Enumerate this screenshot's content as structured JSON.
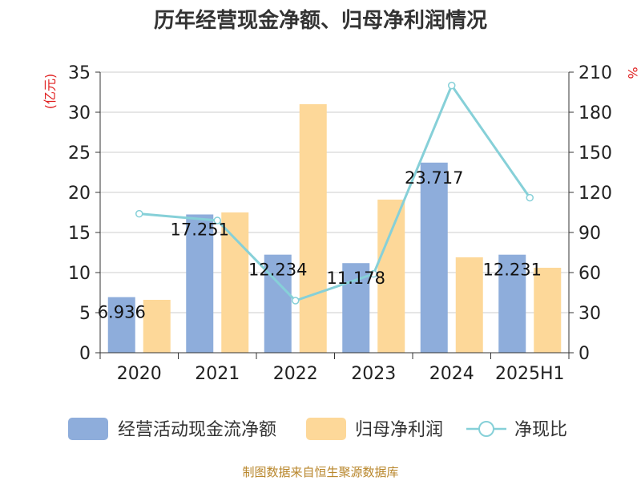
{
  "chart_data": {
    "type": "bar",
    "title": "历年经营现金净额、归母净利润情况",
    "categories": [
      "2020",
      "2021",
      "2022",
      "2023",
      "2024",
      "2025H1"
    ],
    "series": [
      {
        "name": "经营活动现金流净额",
        "type": "bar",
        "axis": "left",
        "values": [
          6.936,
          17.251,
          12.234,
          11.178,
          23.717,
          12.231
        ],
        "data_labels": [
          "6.936",
          "17.251",
          "12.234",
          "11.178",
          "23.717",
          "12.231"
        ]
      },
      {
        "name": "归母净利润",
        "type": "bar",
        "axis": "left",
        "values": [
          6.6,
          17.5,
          31.0,
          19.1,
          11.9,
          10.6
        ]
      },
      {
        "name": "净现比",
        "type": "line",
        "axis": "right",
        "values": [
          104,
          99,
          39,
          59,
          200,
          116
        ]
      }
    ],
    "y_left": {
      "unit": "(亿元)",
      "ylim": [
        0,
        35
      ],
      "ticks": [
        "0",
        "5",
        "10",
        "15",
        "20",
        "25",
        "30",
        "35"
      ]
    },
    "y_right": {
      "unit": "%",
      "ylim": [
        0,
        210
      ],
      "ticks": [
        "0",
        "30",
        "60",
        "90",
        "120",
        "150",
        "180",
        "210"
      ]
    },
    "grid": true,
    "legend_position": "bottom"
  },
  "colors": {
    "cash_flow": "#8eaddb",
    "net_profit": "#fdd899",
    "ratio": "#86d0d8",
    "unit_label": "#e02020",
    "source_text": "#b8862b"
  },
  "source": "制图数据来自恒生聚源数据库"
}
